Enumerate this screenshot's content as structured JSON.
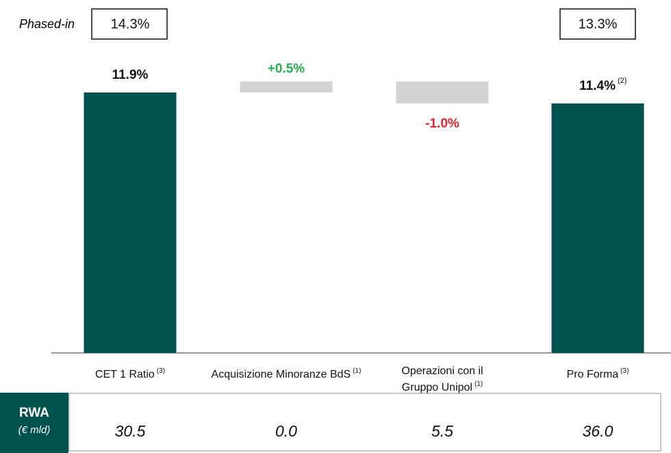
{
  "chart_data": {
    "type": "waterfall",
    "categories": [
      "CET 1 Ratio",
      "Acquisizione Minoranze BdS",
      "Operazioni con il Gruppo Unipol",
      "Pro Forma"
    ],
    "category_notes": [
      "(3)",
      "(1)",
      "(1)",
      "(3)"
    ],
    "values": [
      11.9,
      0.5,
      -1.0,
      11.4
    ],
    "value_labels": [
      "11.9%",
      "+0.5%",
      "-1.0%",
      "11.4%"
    ],
    "value_label_notes": [
      null,
      null,
      null,
      "(2)"
    ],
    "totals": [
      true,
      false,
      false,
      true
    ],
    "colors": {
      "total": "#00524e",
      "delta": "#d3d3d3",
      "up_label": "#22b14c",
      "down_label": "#e8202a"
    },
    "ylim": [
      0,
      12.4
    ],
    "phased_in": {
      "label": "Phased-in",
      "values": [
        "14.3%",
        null,
        null,
        "13.3%"
      ]
    },
    "rwa": {
      "title": "RWA",
      "unit": "(€ mld)",
      "values": [
        "30.5",
        "0.0",
        "5.5",
        "36.0"
      ]
    }
  }
}
